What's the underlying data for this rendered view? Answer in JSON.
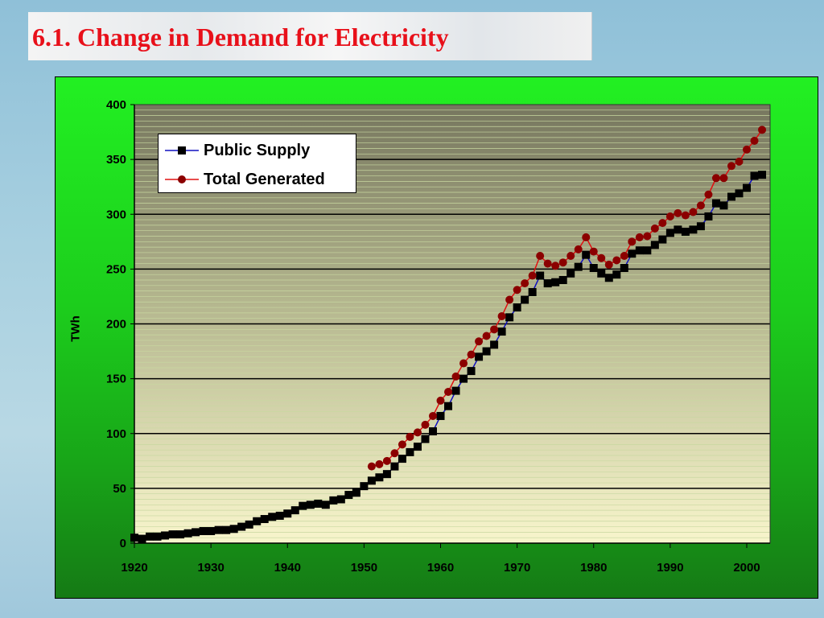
{
  "slide": {
    "title": "6.1. Change in Demand for Electricity"
  },
  "chart_data": {
    "type": "line",
    "title": "",
    "xlabel": "",
    "ylabel": "TWh",
    "xlim": [
      1920,
      2003
    ],
    "ylim": [
      0,
      400
    ],
    "x_ticks": [
      "1920",
      "1930",
      "1940",
      "1950",
      "1960",
      "1970",
      "1980",
      "1990",
      "2000"
    ],
    "y_ticks": [
      "0",
      "50",
      "100",
      "150",
      "200",
      "250",
      "300",
      "350",
      "400"
    ],
    "grid": "major every 50, minor lines",
    "legend_position": "top-left",
    "colors": {
      "public_supply_line": "#1010c0",
      "public_supply_marker": "#000000",
      "total_line": "#e01010",
      "total_marker": "#8b0000"
    },
    "series": [
      {
        "name": "Public Supply",
        "x_start": 1920,
        "values": [
          5,
          4,
          6,
          6,
          7,
          8,
          8,
          9,
          10,
          11,
          11,
          12,
          12,
          13,
          15,
          17,
          20,
          22,
          24,
          25,
          27,
          30,
          34,
          35,
          36,
          35,
          39,
          40,
          44,
          46,
          52,
          57,
          60,
          63,
          70,
          77,
          83,
          88,
          95,
          102,
          116,
          125,
          139,
          150,
          157,
          170,
          175,
          181,
          193,
          206,
          215,
          222,
          229,
          244,
          237,
          238,
          240,
          246,
          252,
          263,
          251,
          246,
          242,
          245,
          251,
          264,
          267,
          267,
          272,
          277,
          283,
          286,
          284,
          286,
          289,
          298,
          310,
          308,
          316,
          319,
          324,
          335,
          336
        ]
      },
      {
        "name": "Total Generated",
        "x_start": 1951,
        "values": [
          70,
          72,
          75,
          82,
          90,
          97,
          101,
          108,
          116,
          130,
          138,
          152,
          164,
          172,
          184,
          189,
          195,
          207,
          222,
          231,
          237,
          244,
          262,
          255,
          253,
          256,
          262,
          268,
          279,
          266,
          260,
          254,
          258,
          262,
          275,
          279,
          280,
          287,
          292,
          298,
          301,
          299,
          302,
          308,
          318,
          333,
          333,
          344,
          348,
          359,
          367,
          377
        ]
      }
    ]
  }
}
